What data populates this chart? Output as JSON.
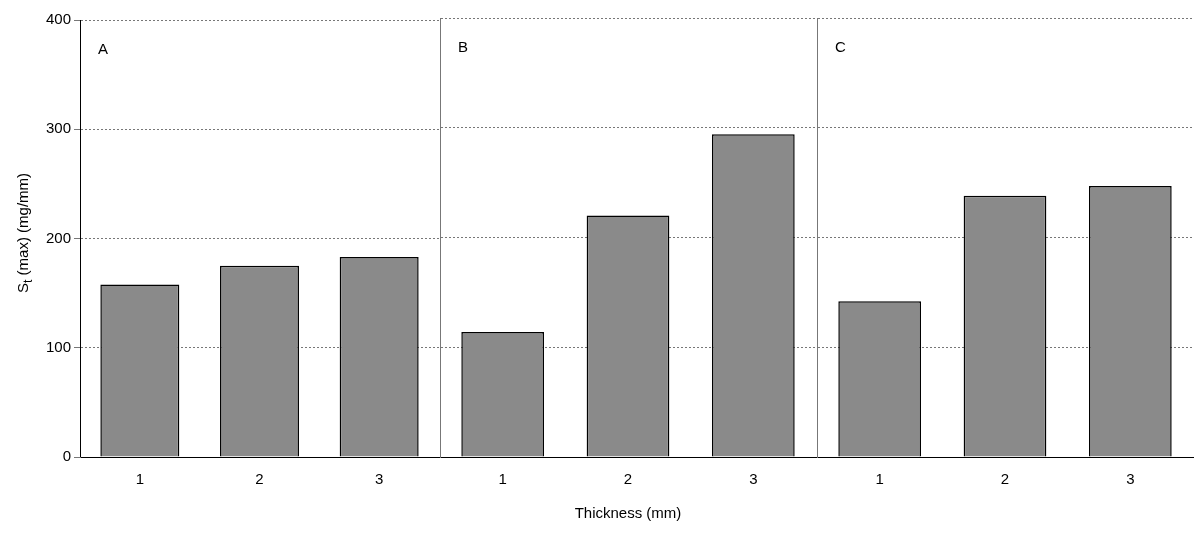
{
  "chart_data": [
    {
      "type": "bar",
      "categories": [
        "1",
        "2",
        "3"
      ],
      "values": [
        158,
        175,
        183
      ],
      "color": "#8a8a8a",
      "ylim": [
        0,
        400
      ],
      "yticks": [
        0,
        100,
        200,
        300,
        400
      ],
      "ylabel": "S$_{t}$ (max) (mg/mm)",
      "annotations": [
        "A"
      ],
      "grid": "y",
      "legend": false
    },
    {
      "type": "bar",
      "categories": [
        "1",
        "2",
        "3"
      ],
      "values": [
        114,
        220,
        294
      ],
      "color": "#8a8a8a",
      "ylim": [
        0,
        400
      ],
      "yticks": [
        0,
        100,
        200,
        300,
        400
      ],
      "xlabel": "Thickness (mm)",
      "annotations": [
        "B"
      ],
      "grid": "y",
      "legend": false,
      "tick_labels": "x"
    },
    {
      "type": "bar",
      "categories": [
        "1",
        "2",
        "3"
      ],
      "values": [
        142,
        238,
        247
      ],
      "color": "#8a8a8a",
      "ylim": [
        0,
        400
      ],
      "yticks": [
        0,
        100,
        200,
        300,
        400
      ],
      "annotations": [
        "C"
      ],
      "grid": "y",
      "legend": false,
      "tick_labels": "x"
    }
  ]
}
